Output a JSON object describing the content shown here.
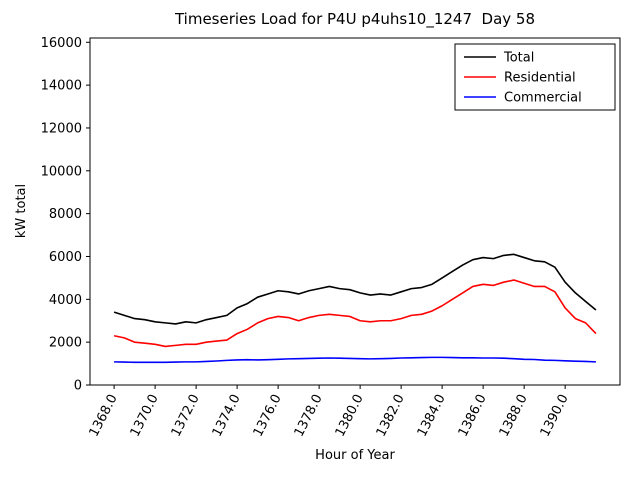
{
  "chart_data": {
    "type": "line",
    "title": "Timeseries Load for P4U p4uhs10_1247  Day 58",
    "xlabel": "Hour of Year",
    "ylabel": "kW total",
    "x": [
      1368.0,
      1368.5,
      1369.0,
      1369.5,
      1370.0,
      1370.5,
      1371.0,
      1371.5,
      1372.0,
      1372.5,
      1373.0,
      1373.5,
      1374.0,
      1374.5,
      1375.0,
      1375.5,
      1376.0,
      1376.5,
      1377.0,
      1377.5,
      1378.0,
      1378.5,
      1379.0,
      1379.5,
      1380.0,
      1380.5,
      1381.0,
      1381.5,
      1382.0,
      1382.5,
      1383.0,
      1383.5,
      1384.0,
      1384.5,
      1385.0,
      1385.5,
      1386.0,
      1386.5,
      1387.0,
      1387.5,
      1388.0,
      1388.5,
      1389.0,
      1389.5,
      1390.0,
      1390.5,
      1391.0,
      1391.5
    ],
    "series": [
      {
        "name": "Total",
        "color": "#000000",
        "values": [
          3400,
          3250,
          3100,
          3050,
          2950,
          2900,
          2850,
          2950,
          2900,
          3050,
          3150,
          3250,
          3600,
          3800,
          4100,
          4250,
          4400,
          4350,
          4250,
          4400,
          4500,
          4600,
          4500,
          4450,
          4300,
          4200,
          4250,
          4200,
          4350,
          4500,
          4550,
          4700,
          5000,
          5300,
          5600,
          5850,
          5950,
          5900,
          6050,
          6100,
          5950,
          5800,
          5750,
          5500,
          4800,
          4300,
          3900,
          3500
        ]
      },
      {
        "name": "Residential",
        "color": "#ff0000",
        "values": [
          2300,
          2200,
          2000,
          1950,
          1900,
          1800,
          1850,
          1900,
          1900,
          2000,
          2050,
          2100,
          2400,
          2600,
          2900,
          3100,
          3200,
          3150,
          3000,
          3150,
          3250,
          3300,
          3250,
          3200,
          3000,
          2950,
          3000,
          3000,
          3100,
          3250,
          3300,
          3450,
          3700,
          4000,
          4300,
          4600,
          4700,
          4650,
          4800,
          4900,
          4750,
          4600,
          4600,
          4350,
          3600,
          3100,
          2900,
          2400
        ]
      },
      {
        "name": "Commercial",
        "color": "#0000ff",
        "values": [
          1080,
          1070,
          1060,
          1060,
          1060,
          1060,
          1070,
          1080,
          1080,
          1100,
          1120,
          1150,
          1170,
          1180,
          1170,
          1180,
          1200,
          1220,
          1230,
          1240,
          1250,
          1260,
          1250,
          1240,
          1230,
          1220,
          1230,
          1240,
          1260,
          1270,
          1280,
          1290,
          1290,
          1280,
          1270,
          1270,
          1260,
          1260,
          1250,
          1230,
          1200,
          1190,
          1160,
          1150,
          1130,
          1110,
          1100,
          1080
        ]
      }
    ],
    "xticks": [
      1368.0,
      1370.0,
      1372.0,
      1374.0,
      1376.0,
      1378.0,
      1380.0,
      1382.0,
      1384.0,
      1386.0,
      1388.0,
      1390.0
    ],
    "xtick_decimals": 1,
    "yticks": [
      0,
      2000,
      4000,
      6000,
      8000,
      10000,
      12000,
      14000,
      16000
    ],
    "ylim": [
      0,
      16200
    ],
    "grid": false,
    "legend_position": "upper right",
    "line_width": 1.6
  }
}
